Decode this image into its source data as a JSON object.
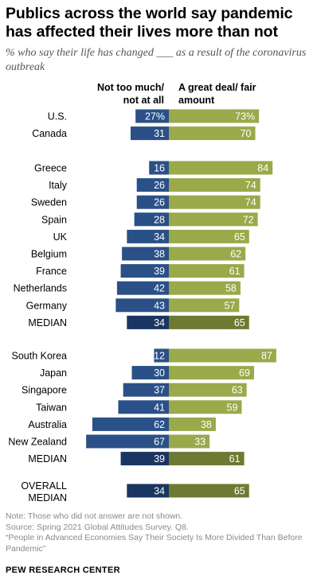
{
  "title": "Publics across the world say pandemic has affected their lives more than not",
  "subtitle": "% who say their life has changed ___ as a result of the coronavirus outbreak",
  "legend": {
    "left": "Not too much/ not at all",
    "right": "A great deal/ fair amount"
  },
  "notes": [
    "Note: Those who did not answer are not shown.",
    "Source: Spring 2021 Global Attitudes Survey. Q8.",
    "“People in Advanced Economies Say Their Society Is More Divided Than Before Pandemic”"
  ],
  "source_org": "PEW RESEARCH CENTER",
  "colors": {
    "left": "#2a5087",
    "right": "#9aa94a",
    "median_left": "#1a3561",
    "median_right": "#6d7a32",
    "label_text": "#ffffff"
  },
  "chart_data": {
    "type": "bar",
    "orientation": "diverging-horizontal",
    "series": [
      {
        "name": "Not too much/ not at all",
        "side": "left"
      },
      {
        "name": "A great deal/ fair amount",
        "side": "right"
      }
    ],
    "groups": [
      {
        "rows": [
          {
            "label": "U.S.",
            "left": 27,
            "right": 73,
            "left_text": "27%",
            "right_text": "73%"
          },
          {
            "label": "Canada",
            "left": 31,
            "right": 70,
            "left_text": "31",
            "right_text": "70"
          }
        ]
      },
      {
        "rows": [
          {
            "label": "Greece",
            "left": 16,
            "right": 84,
            "left_text": "16",
            "right_text": "84"
          },
          {
            "label": "Italy",
            "left": 26,
            "right": 74,
            "left_text": "26",
            "right_text": "74"
          },
          {
            "label": "Sweden",
            "left": 26,
            "right": 74,
            "left_text": "26",
            "right_text": "74"
          },
          {
            "label": "Spain",
            "left": 28,
            "right": 72,
            "left_text": "28",
            "right_text": "72"
          },
          {
            "label": "UK",
            "left": 34,
            "right": 65,
            "left_text": "34",
            "right_text": "65"
          },
          {
            "label": "Belgium",
            "left": 38,
            "right": 62,
            "left_text": "38",
            "right_text": "62"
          },
          {
            "label": "France",
            "left": 39,
            "right": 61,
            "left_text": "39",
            "right_text": "61"
          },
          {
            "label": "Netherlands",
            "left": 42,
            "right": 58,
            "left_text": "42",
            "right_text": "58"
          },
          {
            "label": "Germany",
            "left": 43,
            "right": 57,
            "left_text": "43",
            "right_text": "57"
          },
          {
            "label": "MEDIAN",
            "left": 34,
            "right": 65,
            "left_text": "34",
            "right_text": "65",
            "median": true
          }
        ]
      },
      {
        "rows": [
          {
            "label": "South Korea",
            "left": 12,
            "right": 87,
            "left_text": "12",
            "right_text": "87"
          },
          {
            "label": "Japan",
            "left": 30,
            "right": 69,
            "left_text": "30",
            "right_text": "69"
          },
          {
            "label": "Singapore",
            "left": 37,
            "right": 63,
            "left_text": "37",
            "right_text": "63"
          },
          {
            "label": "Taiwan",
            "left": 41,
            "right": 59,
            "left_text": "41",
            "right_text": "59"
          },
          {
            "label": "Australia",
            "left": 62,
            "right": 38,
            "left_text": "62",
            "right_text": "38"
          },
          {
            "label": "New Zealand",
            "left": 67,
            "right": 33,
            "left_text": "67",
            "right_text": "33"
          },
          {
            "label": "MEDIAN",
            "left": 39,
            "right": 61,
            "left_text": "39",
            "right_text": "61",
            "median": true
          }
        ]
      },
      {
        "rows": [
          {
            "label": "OVERALL MEDIAN",
            "left": 34,
            "right": 65,
            "left_text": "34",
            "right_text": "65",
            "median": true
          }
        ]
      }
    ]
  }
}
